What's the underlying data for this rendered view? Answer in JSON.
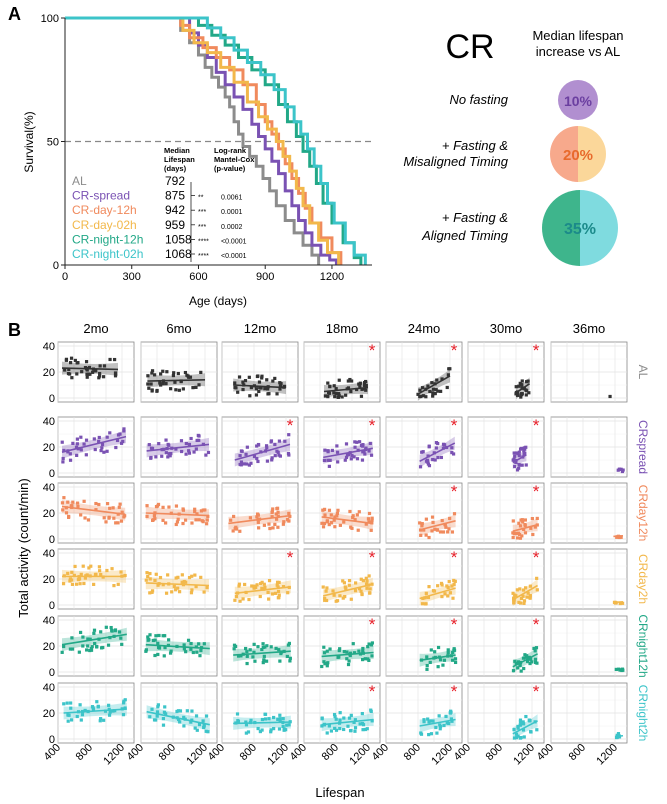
{
  "colors": {
    "AL": "#8c8c8c",
    "CR-spread": "#7a52b3",
    "CR-day-12h": "#f08a5d",
    "CR-day-02h": "#f2b84b",
    "CR-night-12h": "#22a887",
    "CR-night-02h": "#3cc4c9",
    "star": "#e8202a",
    "AL-dark": "#333333",
    "pie_purple": "#b18fd0",
    "pie_orange_l": "#f7a98c",
    "pie_orange_r": "#fbd79a",
    "pie_green": "#3eb58c",
    "pie_teal": "#7fdbdf"
  },
  "panel_a": {
    "label": "A",
    "table": {
      "col1_header": [
        "Median",
        "Lifespan",
        "(days)"
      ],
      "col2_header": [
        "Log-rank",
        "Mantel-Cox",
        "(p-value)"
      ],
      "rows": [
        {
          "name": "AL",
          "median": "792",
          "stars": "",
          "p": ""
        },
        {
          "name": "CR-spread",
          "median": "875",
          "stars": "**",
          "p": "0.0061"
        },
        {
          "name": "CR-day-12h",
          "median": "942",
          "stars": "***",
          "p": "0.0001"
        },
        {
          "name": "CR-day-02h",
          "median": "959",
          "stars": "***",
          "p": "0.0002"
        },
        {
          "name": "CR-night-12h",
          "median": "1058",
          "stars": "****",
          "p": "<0.0001"
        },
        {
          "name": "CR-night-02h",
          "median": "1068",
          "stars": "****",
          "p": "<0.0001"
        }
      ]
    },
    "cr_title": "CR",
    "median_title": [
      "Median lifespan",
      "increase vs AL"
    ],
    "pie_labels": [
      [
        "No fasting"
      ],
      [
        "+ Fasting &",
        "Misaligned Timing"
      ],
      [
        "+ Fasting &",
        "Aligned Timing"
      ]
    ],
    "pie_values": [
      "10%",
      "20%",
      "35%"
    ]
  },
  "panel_b": {
    "label": "B",
    "ylabel": "Total activity (count/min)",
    "xlabel": "Lifespan",
    "ages": [
      "2mo",
      "6mo",
      "12mo",
      "18mo",
      "24mo",
      "30mo",
      "36mo"
    ],
    "groups": [
      "AL",
      "CRspread",
      "CRday12h",
      "CRday2h",
      "CRnight12h",
      "CRnight2h"
    ],
    "yticks": [
      "40",
      "20",
      "0"
    ],
    "xticks": [
      "400",
      "800",
      "1200"
    ],
    "significant": [
      [
        false,
        false,
        false,
        true,
        true,
        true,
        false
      ],
      [
        false,
        false,
        true,
        true,
        true,
        true,
        false
      ],
      [
        false,
        false,
        false,
        false,
        true,
        true,
        false
      ],
      [
        false,
        false,
        true,
        true,
        true,
        true,
        false
      ],
      [
        false,
        false,
        false,
        true,
        true,
        true,
        false
      ],
      [
        false,
        false,
        false,
        true,
        true,
        true,
        false
      ]
    ]
  },
  "chart_data": [
    {
      "type": "line",
      "step": true,
      "xlabel": "Age (days)",
      "ylabel": "Survival(%)",
      "xlim": [
        0,
        1380
      ],
      "ylim": [
        0,
        100
      ],
      "xticks": [
        0,
        300,
        600,
        900,
        1200
      ],
      "yticks": [
        0,
        50,
        100
      ],
      "reference_line_y": 50,
      "series": [
        {
          "name": "AL",
          "x": [
            0,
            450,
            520,
            560,
            600,
            630,
            660,
            690,
            720,
            740,
            760,
            780,
            800,
            830,
            860,
            890,
            920,
            950,
            990,
            1030,
            1070,
            1110,
            1140
          ],
          "y": [
            100,
            100,
            95,
            90,
            85,
            80,
            76,
            72,
            68,
            64,
            58,
            53,
            48,
            44,
            40,
            35,
            30,
            24,
            18,
            13,
            8,
            4,
            0
          ]
        },
        {
          "name": "CR-spread",
          "x": [
            0,
            470,
            560,
            600,
            640,
            680,
            720,
            760,
            800,
            840,
            870,
            900,
            930,
            960,
            990,
            1020,
            1050,
            1080,
            1110,
            1150,
            1190,
            1220
          ],
          "y": [
            100,
            100,
            94,
            89,
            84,
            78,
            73,
            68,
            63,
            57,
            52,
            47,
            42,
            37,
            30,
            24,
            18,
            13,
            8,
            4,
            2,
            0
          ]
        },
        {
          "name": "CR-day-12h",
          "x": [
            0,
            480,
            520,
            560,
            620,
            680,
            740,
            800,
            860,
            900,
            930,
            960,
            990,
            1020,
            1050,
            1080,
            1110,
            1150,
            1200,
            1240
          ],
          "y": [
            100,
            100,
            97,
            92,
            88,
            84,
            79,
            73,
            65,
            58,
            53,
            47,
            41,
            35,
            29,
            23,
            17,
            11,
            5,
            0
          ]
        },
        {
          "name": "CR-day-02h",
          "x": [
            0,
            480,
            530,
            580,
            640,
            700,
            760,
            820,
            870,
            910,
            950,
            980,
            1010,
            1040,
            1070,
            1100,
            1140,
            1180,
            1230
          ],
          "y": [
            100,
            100,
            95,
            90,
            86,
            80,
            74,
            66,
            60,
            55,
            50,
            44,
            38,
            31,
            24,
            17,
            10,
            5,
            0
          ]
        },
        {
          "name": "CR-night-12h",
          "x": [
            0,
            530,
            600,
            660,
            720,
            780,
            840,
            900,
            960,
            1000,
            1040,
            1070,
            1100,
            1130,
            1160,
            1200,
            1250,
            1300,
            1330
          ],
          "y": [
            100,
            100,
            97,
            93,
            89,
            84,
            79,
            73,
            65,
            58,
            52,
            46,
            40,
            33,
            25,
            17,
            9,
            3,
            0
          ]
        },
        {
          "name": "CR-night-02h",
          "x": [
            0,
            600,
            640,
            700,
            760,
            820,
            880,
            940,
            990,
            1030,
            1060,
            1090,
            1120,
            1150,
            1180,
            1210,
            1260,
            1300,
            1350
          ],
          "y": [
            100,
            100,
            96,
            92,
            87,
            82,
            77,
            71,
            64,
            58,
            53,
            47,
            40,
            33,
            25,
            17,
            9,
            4,
            0
          ]
        }
      ]
    },
    {
      "type": "pie",
      "title": "Median lifespan increase vs AL",
      "categories": [
        "No fasting",
        "+ Fasting & Misaligned Timing",
        "+ Fasting & Aligned Timing"
      ],
      "values": [
        10,
        20,
        35
      ]
    },
    {
      "type": "scatter",
      "grid": "6 groups x 7 ages, each cell activity vs lifespan with linear fit and confidence band",
      "xlabel": "Lifespan",
      "ylabel": "Total activity (count/min)",
      "xlim": [
        400,
        1350
      ],
      "ylim": [
        0,
        40
      ],
      "row_names": [
        "AL",
        "CRspread",
        "CRday12h",
        "CRday2h",
        "CRnight12h",
        "CRnight2h"
      ],
      "col_names": [
        "2mo",
        "6mo",
        "12mo",
        "18mo",
        "24mo",
        "30mo",
        "36mo"
      ],
      "cells": [
        [
          {
            "fit": [
              23,
              22
            ],
            "xr": [
              450,
              1150
            ]
          },
          {
            "fit": [
              13,
              14
            ],
            "xr": [
              480,
              1200
            ]
          },
          {
            "fit": [
              10,
              8
            ],
            "xr": [
              540,
              1200
            ]
          },
          {
            "fit": [
              5,
              8
            ],
            "xr": [
              650,
              1200
            ]
          },
          {
            "fit": [
              3,
              17
            ],
            "xr": [
              800,
              1200
            ]
          },
          {
            "fit": [
              4,
              11
            ],
            "xr": [
              1000,
              1170
            ]
          },
          {
            "fit": null,
            "xr": [
              1100,
              1150
            ]
          }
        ],
        [
          {
            "fit": [
              16,
              28
            ],
            "xr": [
              450,
              1250
            ]
          },
          {
            "fit": [
              17,
              22
            ],
            "xr": [
              470,
              1250
            ]
          },
          {
            "fit": [
              10,
              22
            ],
            "xr": [
              560,
              1250
            ]
          },
          {
            "fit": [
              12,
              19
            ],
            "xr": [
              640,
              1260
            ]
          },
          {
            "fit": [
              9,
              23
            ],
            "xr": [
              820,
              1260
            ]
          },
          {
            "fit": [
              8,
              14
            ],
            "xr": [
              960,
              1130
            ]
          },
          {
            "fit": null,
            "xr": [
              1240,
              1320
            ]
          }
        ],
        [
          {
            "fit": [
              25,
              19
            ],
            "xr": [
              450,
              1240
            ]
          },
          {
            "fit": [
              20,
              18
            ],
            "xr": [
              460,
              1250
            ]
          },
          {
            "fit": [
              12,
              18
            ],
            "xr": [
              480,
              1260
            ]
          },
          {
            "fit": [
              17,
              12
            ],
            "xr": [
              620,
              1260
            ]
          },
          {
            "fit": [
              7,
              14
            ],
            "xr": [
              820,
              1270
            ]
          },
          {
            "fit": [
              6,
              11
            ],
            "xr": [
              960,
              1270
            ]
          },
          {
            "fit": null,
            "xr": [
              1180,
              1300
            ]
          }
        ],
        [
          {
            "fit": [
              22,
              22
            ],
            "xr": [
              450,
              1250
            ]
          },
          {
            "fit": [
              17,
              15
            ],
            "xr": [
              460,
              1250
            ]
          },
          {
            "fit": [
              9,
              14
            ],
            "xr": [
              560,
              1260
            ]
          },
          {
            "fit": [
              7,
              16
            ],
            "xr": [
              640,
              1260
            ]
          },
          {
            "fit": [
              5,
              13
            ],
            "xr": [
              820,
              1270
            ]
          },
          {
            "fit": [
              4,
              15
            ],
            "xr": [
              960,
              1270
            ]
          },
          {
            "fit": null,
            "xr": [
              1180,
              1300
            ]
          }
        ],
        [
          {
            "fit": [
              21,
              29
            ],
            "xr": [
              450,
              1260
            ]
          },
          {
            "fit": [
              21,
              18
            ],
            "xr": [
              460,
              1260
            ]
          },
          {
            "fit": [
              13,
              16
            ],
            "xr": [
              540,
              1260
            ]
          },
          {
            "fit": [
              12,
              15
            ],
            "xr": [
              620,
              1270
            ]
          },
          {
            "fit": [
              9,
              13
            ],
            "xr": [
              820,
              1270
            ]
          },
          {
            "fit": [
              4,
              14
            ],
            "xr": [
              960,
              1270
            ]
          },
          {
            "fit": null,
            "xr": [
              1200,
              1300
            ]
          }
        ],
        [
          {
            "fit": [
              20,
              23
            ],
            "xr": [
              470,
              1260
            ]
          },
          {
            "fit": [
              21,
              11
            ],
            "xr": [
              470,
              1260
            ]
          },
          {
            "fit": [
              12,
              13
            ],
            "xr": [
              540,
              1260
            ]
          },
          {
            "fit": [
              11,
              15
            ],
            "xr": [
              620,
              1270
            ]
          },
          {
            "fit": [
              10,
              15
            ],
            "xr": [
              820,
              1270
            ]
          },
          {
            "fit": [
              4,
              14
            ],
            "xr": [
              960,
              1270
            ]
          },
          {
            "fit": null,
            "xr": [
              1200,
              1300
            ]
          }
        ]
      ]
    }
  ]
}
